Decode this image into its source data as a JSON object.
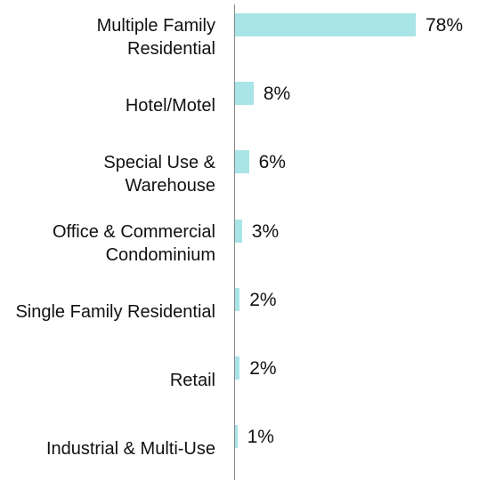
{
  "chart_data": {
    "type": "bar",
    "orientation": "horizontal",
    "categories": [
      "Multiple Family Residential",
      "Hotel/Motel",
      "Special Use & Warehouse",
      "Office & Commercial Condominium",
      "Single Family Residential",
      "Retail",
      "Industrial & Multi-Use"
    ],
    "values": [
      78,
      8,
      6,
      3,
      2,
      2,
      1
    ],
    "value_labels": [
      "78%",
      "8%",
      "6%",
      "3%",
      "2%",
      "2%",
      "1%"
    ],
    "color": "#a9e4e6"
  }
}
